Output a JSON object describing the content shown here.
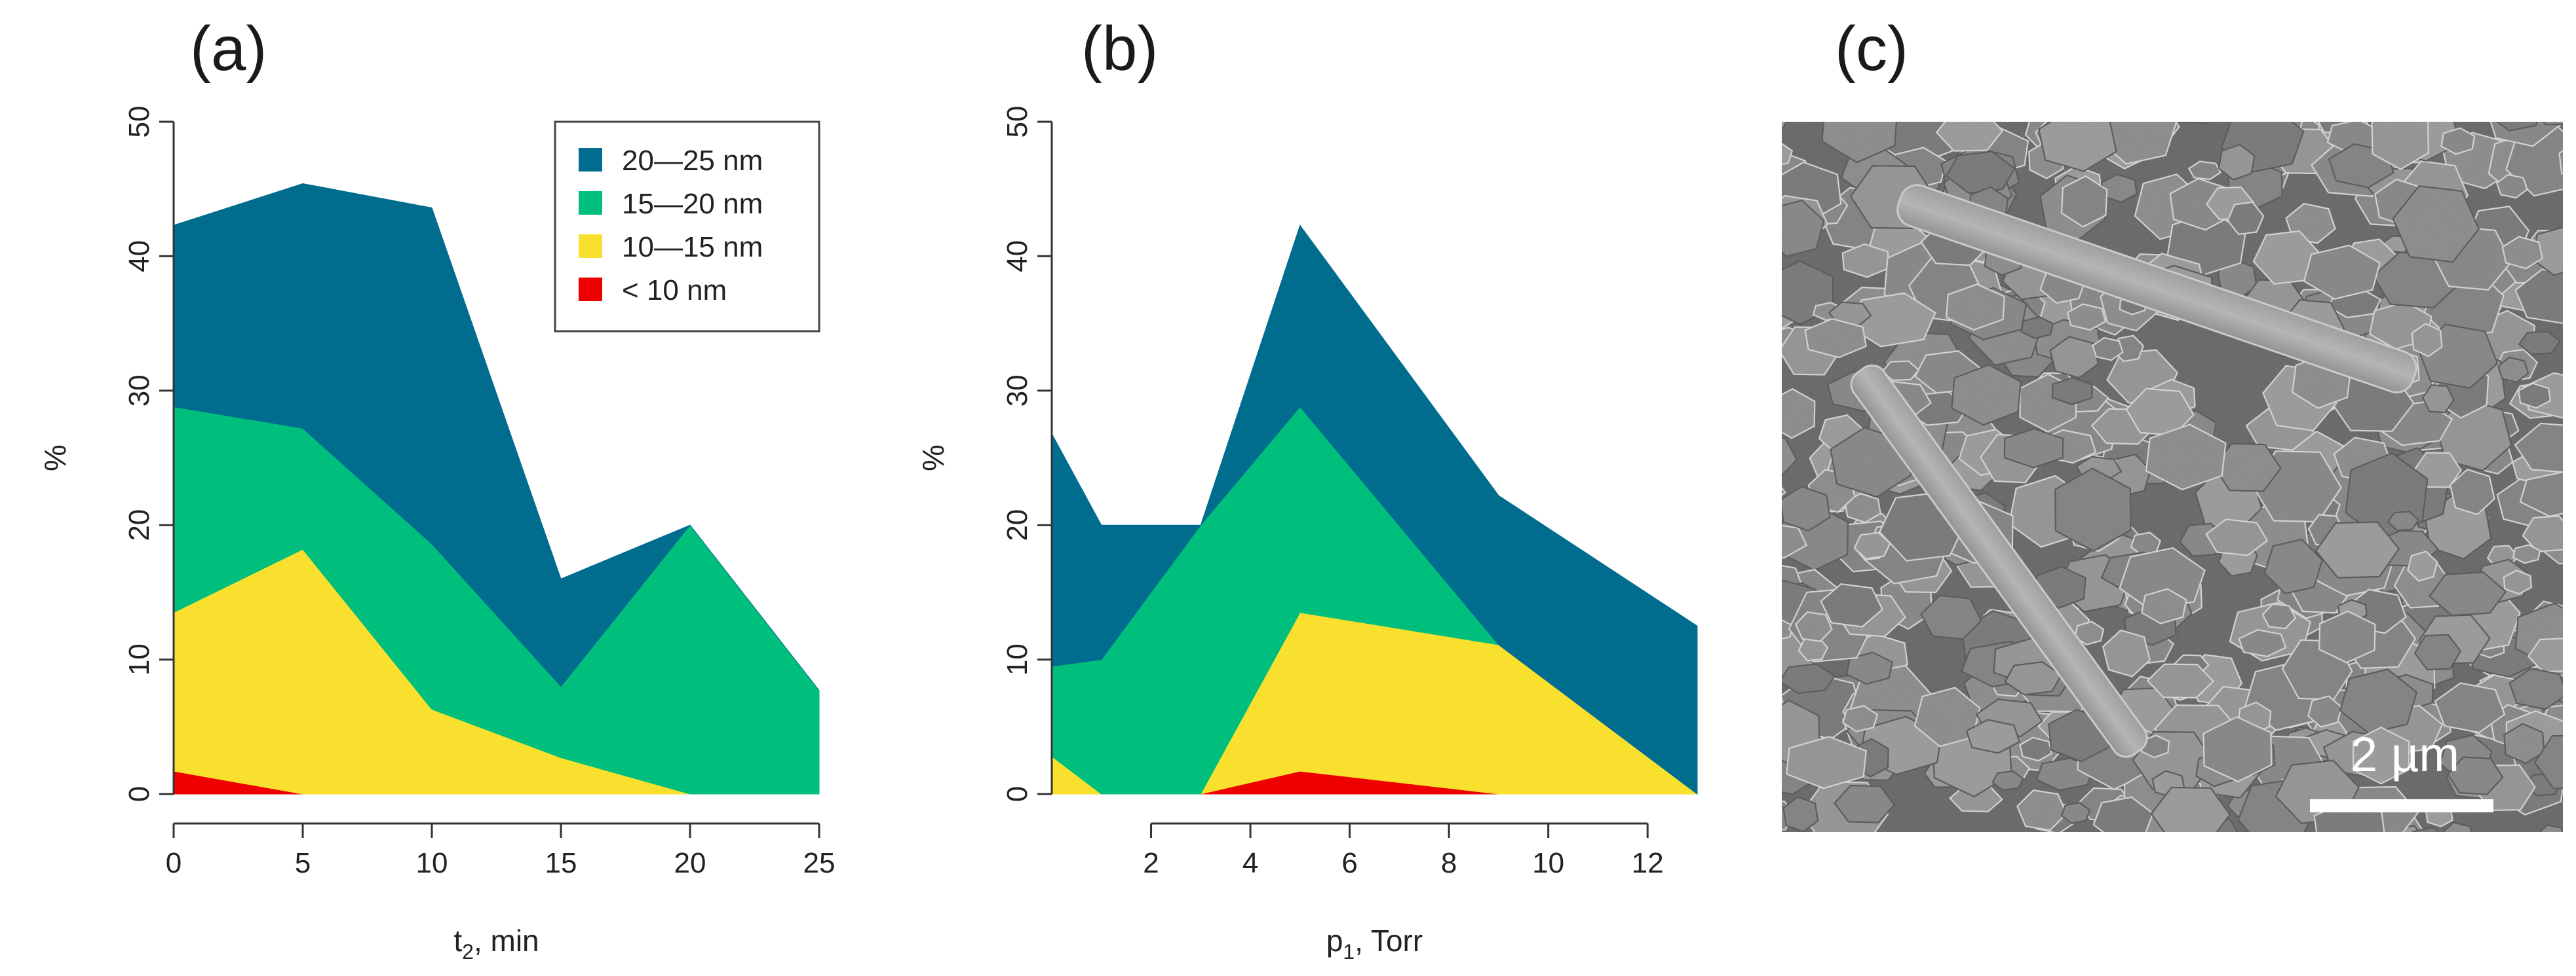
{
  "panels": {
    "a": "(a)",
    "b": "(b)",
    "c": "(c)"
  },
  "legend": [
    {
      "label": "20—25 nm",
      "color": "#006d8f"
    },
    {
      "label": "15—20 nm",
      "color": "#00bf7d"
    },
    {
      "label": "10—15 nm",
      "color": "#f9e02e"
    },
    {
      "label": "< 10 nm",
      "color": "#ee0000"
    }
  ],
  "chart_data": [
    {
      "type": "area",
      "stacked": true,
      "panel": "(a)",
      "xlabel_main": "t",
      "xlabel_sub": "2",
      "xlabel_rest": ", min",
      "ylabel": "%",
      "xlim": [
        0,
        25
      ],
      "ylim": [
        0,
        50
      ],
      "xticks": [
        0,
        5,
        10,
        15,
        20,
        25
      ],
      "yticks": [
        0,
        10,
        20,
        30,
        40,
        50
      ],
      "legend_position": "top-right",
      "x": [
        0,
        5,
        10,
        15,
        20,
        25
      ],
      "series": [
        {
          "name": "< 10 nm",
          "values": [
            1.7,
            0,
            0,
            0,
            0,
            0
          ]
        },
        {
          "name": "10—15 nm",
          "values": [
            11.8,
            18.2,
            6.3,
            2.7,
            0,
            0
          ]
        },
        {
          "name": "15—20 nm",
          "values": [
            15.3,
            9.0,
            12.3,
            5.3,
            20,
            7.7
          ]
        },
        {
          "name": "20—25 nm",
          "values": [
            13.5,
            18.2,
            25.0,
            8.0,
            0,
            0
          ]
        }
      ]
    },
    {
      "type": "area",
      "stacked": true,
      "panel": "(b)",
      "xlabel_main": "p",
      "xlabel_sub": "1",
      "xlabel_rest": ", Torr",
      "ylabel": "%",
      "xlim": [
        0,
        13
      ],
      "ylim": [
        0,
        50
      ],
      "xticks": [
        2,
        4,
        6,
        8,
        10,
        12
      ],
      "yticks": [
        0,
        10,
        20,
        30,
        40,
        50
      ],
      "x": [
        0,
        1,
        3,
        5,
        9,
        13
      ],
      "series": [
        {
          "name": "< 10 nm",
          "values": [
            0,
            0,
            0,
            1.7,
            0,
            0
          ]
        },
        {
          "name": "10—15 nm",
          "values": [
            2.8,
            0,
            0,
            11.8,
            11.1,
            0
          ]
        },
        {
          "name": "15—20 nm",
          "values": [
            6.7,
            10,
            20,
            15.3,
            0,
            0
          ]
        },
        {
          "name": "20—25 nm",
          "values": [
            17.3,
            10,
            0,
            13.5,
            11.1,
            12.5
          ]
        }
      ]
    }
  ],
  "scale_bar": {
    "label": "2 µm"
  }
}
